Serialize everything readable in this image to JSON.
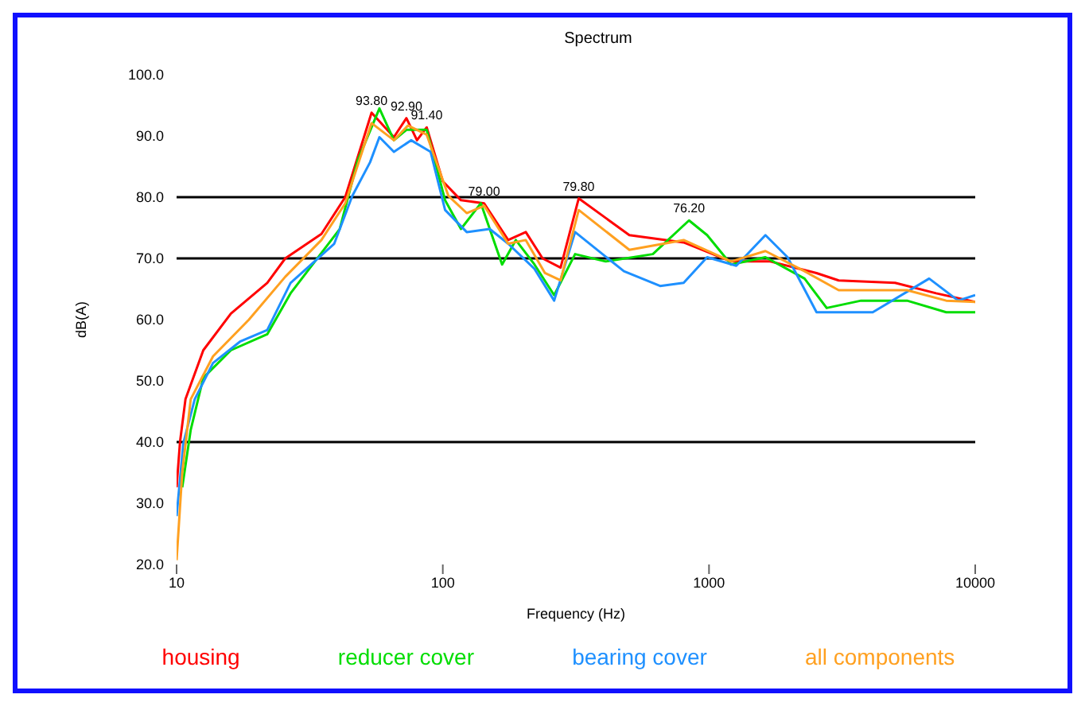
{
  "chart_data": {
    "type": "line",
    "title": "Spectrum",
    "xlabel": "Frequency (Hz)",
    "ylabel": "dB(A)",
    "log": "x",
    "xlim": [
      10,
      10000
    ],
    "xticks": [
      10,
      100,
      1000,
      10000
    ],
    "ylim": [
      20,
      100
    ],
    "yticks": [
      {
        "value": 20,
        "label": "20.0"
      },
      {
        "value": 30,
        "label": "30.0"
      },
      {
        "value": 40,
        "label": "40.0"
      },
      {
        "value": 50,
        "label": "50.0"
      },
      {
        "value": 60,
        "label": "60.0"
      },
      {
        "value": 70,
        "label": "70.0"
      },
      {
        "value": 80,
        "label": "80.0"
      },
      {
        "value": 90,
        "label": "90.0"
      },
      {
        "value": 100,
        "label": "100.0"
      }
    ],
    "grid": false,
    "legend": "bottom",
    "marker": "none",
    "line_style": "solid",
    "ref_lines": [
      {
        "axis": "y",
        "value": 80,
        "color": "#000000"
      },
      {
        "axis": "y",
        "value": 70,
        "color": "#000000"
      },
      {
        "axis": "y",
        "value": 40,
        "color": "#000000"
      }
    ],
    "annotations": [
      {
        "text": "93.80",
        "x": 54,
        "y": 93.8
      },
      {
        "text": "92.90",
        "x": 73,
        "y": 92.9
      },
      {
        "text": "91.40",
        "x": 87,
        "y": 91.4
      },
      {
        "text": "79.00",
        "x": 143,
        "y": 79
      },
      {
        "text": "79.80",
        "x": 324,
        "y": 79.8
      },
      {
        "text": "76.20",
        "x": 841,
        "y": 76.2
      }
    ],
    "series": [
      {
        "name": "housing",
        "color": "#ff0000",
        "x": [
          10,
          10.3,
          10.8,
          12.6,
          16,
          21.9,
          25.6,
          35,
          43,
          54,
          65.5,
          73,
          80,
          87,
          100,
          117,
          143,
          176,
          205,
          237,
          277,
          324,
          502,
          803,
          1211,
          1700,
          2535,
          3070,
          5000,
          7130,
          10000
        ],
        "values": [
          32.6,
          40,
          47,
          55,
          61,
          66,
          70,
          74,
          80,
          93.8,
          89.8,
          92.9,
          89.3,
          91.4,
          82.6,
          79.5,
          79,
          73,
          74.3,
          70,
          68.5,
          79.8,
          73.8,
          72.6,
          69.5,
          69.5,
          67.6,
          66.4,
          66,
          64.3,
          62.9
        ]
      },
      {
        "name": "reducer cover",
        "color": "#00dd00",
        "x": [
          10.5,
          11.3,
          12.6,
          16,
          21.9,
          26.8,
          41,
          47.9,
          57.8,
          65.5,
          73,
          87,
          102,
          117,
          139,
          167,
          188,
          221,
          262,
          314,
          409,
          615,
          841,
          984,
          1211,
          1629,
          2285,
          2767,
          3725,
          5546,
          7780,
          10000
        ],
        "values": [
          32.6,
          42,
          50.5,
          55,
          57.6,
          64.3,
          74.8,
          86,
          94.5,
          89.3,
          91,
          91,
          79.5,
          74.8,
          79,
          69,
          73,
          69,
          64,
          70.7,
          69.5,
          70.7,
          76.2,
          73.8,
          69,
          70.2,
          66.7,
          61.9,
          63.1,
          63.1,
          61.2,
          61.2
        ]
      },
      {
        "name": "bearing cover",
        "color": "#1e90ff",
        "x": [
          10,
          10.6,
          11.7,
          13.7,
          17.3,
          21.9,
          26.8,
          39.1,
          45.7,
          53.3,
          57.8,
          65.5,
          76,
          90,
          102,
          123,
          150,
          176,
          221,
          262,
          314,
          479,
          655,
          803,
          984,
          1266,
          1629,
          1972,
          2535,
          4121,
          6714,
          8630,
          10000
        ],
        "values": [
          27.9,
          39.8,
          47,
          52.9,
          56.4,
          58.3,
          66,
          72.4,
          80.2,
          85.7,
          89.8,
          87.4,
          89.3,
          87.4,
          77.9,
          74.3,
          74.8,
          72.4,
          68.3,
          63.1,
          74.3,
          67.9,
          65.5,
          66,
          70.2,
          68.8,
          73.8,
          70.2,
          61.2,
          61.2,
          66.7,
          63.1,
          64
        ]
      },
      {
        "name": "all components",
        "color": "#ffa020",
        "x": [
          10,
          10.5,
          11.3,
          13.7,
          18.7,
          25.6,
          35,
          43,
          54,
          65.5,
          74,
          87,
          105,
          123,
          143,
          176,
          205,
          242,
          277,
          324,
          502,
          803,
          1211,
          1629,
          2285,
          3070,
          5546,
          7780,
          10000
        ],
        "values": [
          20.7,
          35,
          47,
          54,
          60,
          67,
          73,
          79,
          92.1,
          89.3,
          91.7,
          90.2,
          80.2,
          77.4,
          78.6,
          72.4,
          73,
          67.6,
          66.4,
          77.9,
          71.4,
          73,
          69.5,
          71.2,
          67.9,
          64.8,
          64.8,
          63.1,
          62.9
        ]
      }
    ]
  }
}
